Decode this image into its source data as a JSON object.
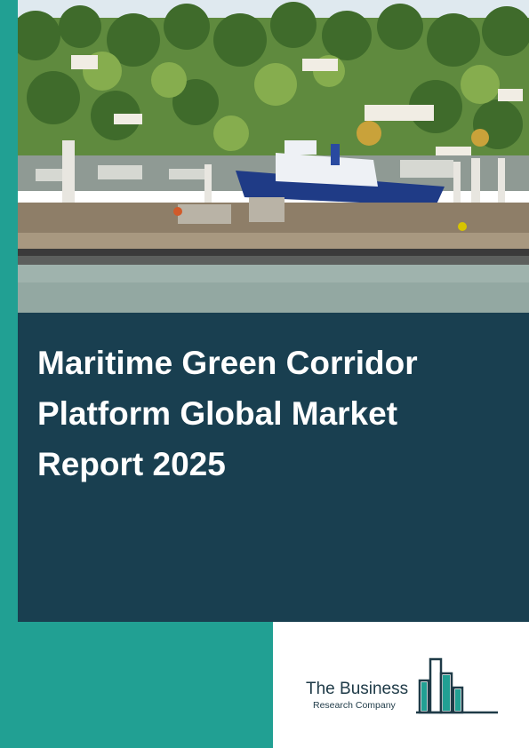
{
  "report": {
    "title": "Maritime Green Corridor Platform Global Market Report 2025"
  },
  "logo": {
    "line1": "The Business",
    "line2": "Research Company"
  },
  "colors": {
    "teal": "#21a093",
    "navy": "#193f50",
    "logo_text": "#1e3a47"
  },
  "photo": {
    "subject": "harbor-marina-photo"
  }
}
